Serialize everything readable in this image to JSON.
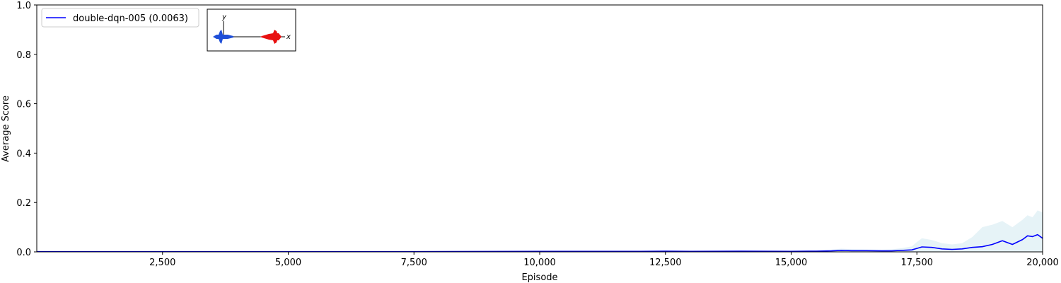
{
  "chart_data": {
    "type": "line",
    "title": "",
    "xlabel": "Episode",
    "ylabel": "Average Score",
    "xlim": [
      0,
      20000
    ],
    "ylim": [
      0,
      1.0
    ],
    "grid": false,
    "legend_placement": "top-left",
    "x_ticks": [
      2500,
      5000,
      7500,
      10000,
      12500,
      15000,
      17500,
      20000
    ],
    "x_tick_labels": [
      "2,500",
      "5,000",
      "7,500",
      "10,000",
      "12,500",
      "15,000",
      "17,500",
      "20,000"
    ],
    "y_ticks": [
      0.0,
      0.2,
      0.4,
      0.6,
      0.8,
      1.0
    ],
    "y_tick_labels": [
      "0.0",
      "0.2",
      "0.4",
      "0.6",
      "0.8",
      "1.0"
    ],
    "series": [
      {
        "name": "double-dqn-005 (0.0063)",
        "color": "#0000ff",
        "band_color": "#add8e6",
        "x": [
          0,
          2500,
          5000,
          7500,
          10000,
          11000,
          12000,
          12500,
          13000,
          14000,
          15000,
          15500,
          15800,
          16000,
          16200,
          16500,
          16800,
          17000,
          17200,
          17400,
          17500,
          17600,
          17800,
          18000,
          18200,
          18400,
          18600,
          18800,
          19000,
          19200,
          19400,
          19600,
          19700,
          19800,
          19900,
          20000
        ],
        "y": [
          0.001,
          0.001,
          0.001,
          0.001,
          0.002,
          0.002,
          0.002,
          0.003,
          0.002,
          0.003,
          0.002,
          0.003,
          0.004,
          0.006,
          0.005,
          0.005,
          0.004,
          0.004,
          0.006,
          0.008,
          0.014,
          0.02,
          0.018,
          0.012,
          0.01,
          0.012,
          0.018,
          0.021,
          0.03,
          0.045,
          0.03,
          0.05,
          0.065,
          0.062,
          0.07,
          0.055
        ],
        "band_upper": [
          0.002,
          0.002,
          0.002,
          0.002,
          0.003,
          0.004,
          0.004,
          0.005,
          0.004,
          0.005,
          0.005,
          0.007,
          0.009,
          0.013,
          0.011,
          0.01,
          0.009,
          0.01,
          0.015,
          0.022,
          0.04,
          0.055,
          0.048,
          0.035,
          0.03,
          0.035,
          0.06,
          0.1,
          0.11,
          0.125,
          0.1,
          0.13,
          0.148,
          0.14,
          0.168,
          0.16
        ],
        "band_lower": [
          0,
          0,
          0,
          0,
          0,
          0,
          0,
          0,
          0,
          0,
          0,
          0,
          0,
          0,
          0,
          0,
          0,
          0,
          0,
          0,
          0,
          0,
          0,
          0,
          0,
          0,
          0,
          0,
          0,
          0,
          0,
          0,
          0,
          0,
          0,
          0
        ]
      }
    ],
    "inset": {
      "y_axis_label": "y",
      "x_axis_label": "x",
      "left_jet_color": "#1f4fd8",
      "right_jet_color": "#e81010"
    }
  }
}
